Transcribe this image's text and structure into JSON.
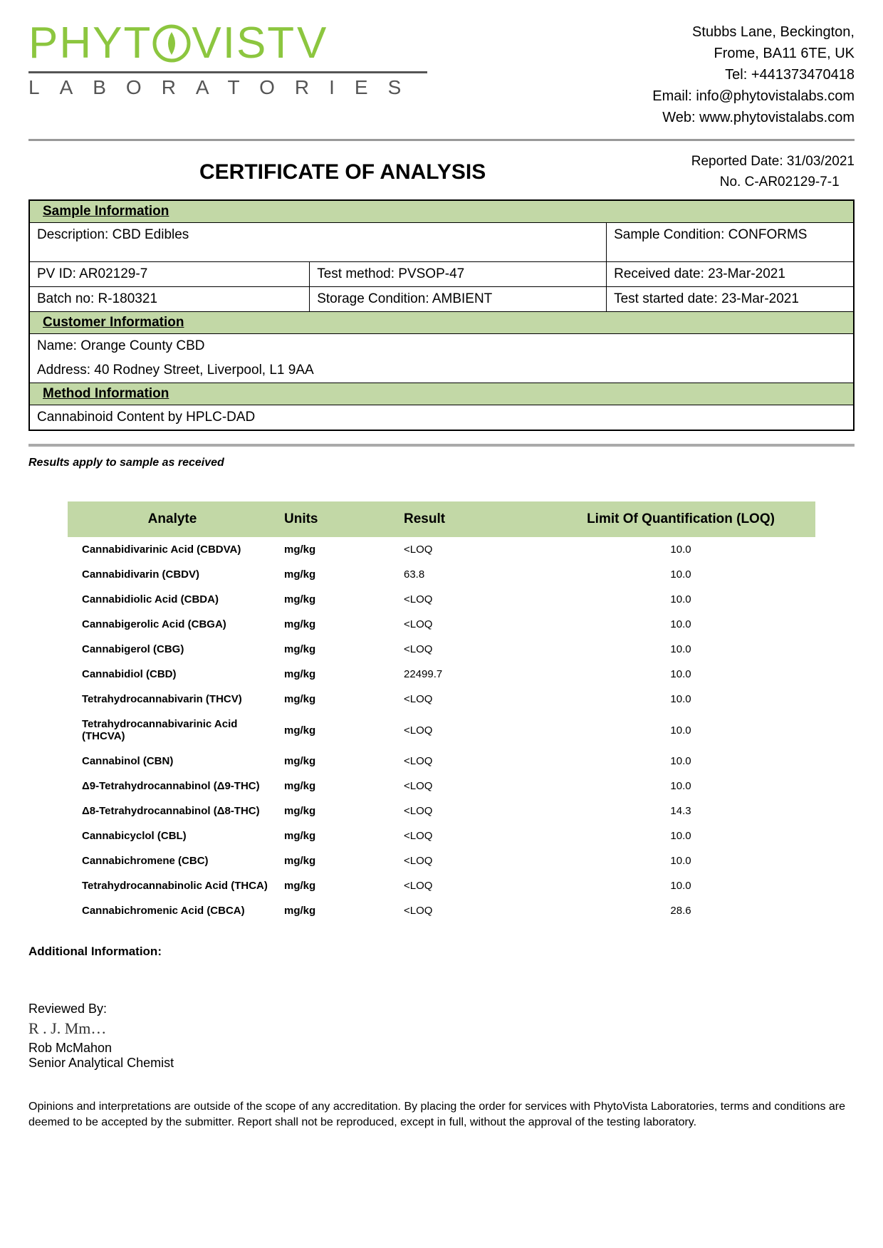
{
  "company": {
    "name_main": "PHYTOVISTA",
    "name_sub": "LABORATORIES",
    "address_line1": "Stubbs Lane, Beckington,",
    "address_line2": "Frome, BA11 6TE, UK",
    "tel_label": "Tel: +441373470418",
    "email_label": "Email: info@phytovistalabs.com",
    "web_label": "Web: www.phytovistalabs.com",
    "logo_color": "#8cc63f"
  },
  "report": {
    "title": "CERTIFICATE OF ANALYSIS",
    "reported_date": "Reported Date: 31/03/2021",
    "number": "No. C-AR02129-7-1"
  },
  "sample_info": {
    "header": "Sample Information",
    "description": "Description: CBD Edibles",
    "condition": "Sample Condition: CONFORMS",
    "pv_id": "PV ID: AR02129-7",
    "test_method": "Test method: PVSOP-47",
    "received_date": "Received date: 23-Mar-2021",
    "batch_no": "Batch no: R-180321",
    "storage": "Storage Condition: AMBIENT",
    "test_started": "Test started date: 23-Mar-2021"
  },
  "customer_info": {
    "header": "Customer Information",
    "name": "Name:   Orange County CBD",
    "address": "Address:   40 Rodney Street, Liverpool, L1 9AA"
  },
  "method_info": {
    "header": "Method Information",
    "text": "Cannabinoid Content by HPLC-DAD"
  },
  "results_note": "Results apply to sample as received",
  "results_table": {
    "header_bg": "#c2d8a6",
    "columns": [
      "Analyte",
      "Units",
      "Result",
      "Limit Of Quantification (LOQ)"
    ],
    "rows": [
      [
        "Cannabidivarinic Acid (CBDVA)",
        "mg/kg",
        "<LOQ",
        "10.0"
      ],
      [
        "Cannabidivarin (CBDV)",
        "mg/kg",
        "63.8",
        "10.0"
      ],
      [
        "Cannabidiolic Acid (CBDA)",
        "mg/kg",
        "<LOQ",
        "10.0"
      ],
      [
        "Cannabigerolic Acid (CBGA)",
        "mg/kg",
        "<LOQ",
        "10.0"
      ],
      [
        "Cannabigerol (CBG)",
        "mg/kg",
        "<LOQ",
        "10.0"
      ],
      [
        "Cannabidiol (CBD)",
        "mg/kg",
        "22499.7",
        "10.0"
      ],
      [
        "Tetrahydrocannabivarin (THCV)",
        "mg/kg",
        "<LOQ",
        "10.0"
      ],
      [
        "Tetrahydrocannabivarinic Acid (THCVA)",
        "mg/kg",
        "<LOQ",
        "10.0"
      ],
      [
        "Cannabinol (CBN)",
        "mg/kg",
        "<LOQ",
        "10.0"
      ],
      [
        "Δ9-Tetrahydrocannabinol (Δ9-THC)",
        "mg/kg",
        "<LOQ",
        "10.0"
      ],
      [
        "Δ8-Tetrahydrocannabinol (Δ8-THC)",
        "mg/kg",
        "<LOQ",
        "14.3"
      ],
      [
        "Cannabicyclol (CBL)",
        "mg/kg",
        "<LOQ",
        "10.0"
      ],
      [
        "Cannabichromene (CBC)",
        "mg/kg",
        "<LOQ",
        "10.0"
      ],
      [
        "Tetrahydrocannabinolic Acid (THCA)",
        "mg/kg",
        "<LOQ",
        "10.0"
      ],
      [
        "Cannabichromenic Acid (CBCA)",
        "mg/kg",
        "<LOQ",
        "28.6"
      ]
    ]
  },
  "additional_info_label": "Additional Information:",
  "review": {
    "label": "Reviewed By:",
    "signature_text": "R . J.  Mm…",
    "name": "Rob McMahon",
    "title": "Senior Analytical Chemist"
  },
  "disclaimer": "Opinions and interpretations are outside of the scope of any accreditation. By placing the order for services with PhytoVista Laboratories, terms and conditions are deemed to be accepted by the submitter. Report shall not be reproduced, except in full, without the approval of the testing laboratory."
}
